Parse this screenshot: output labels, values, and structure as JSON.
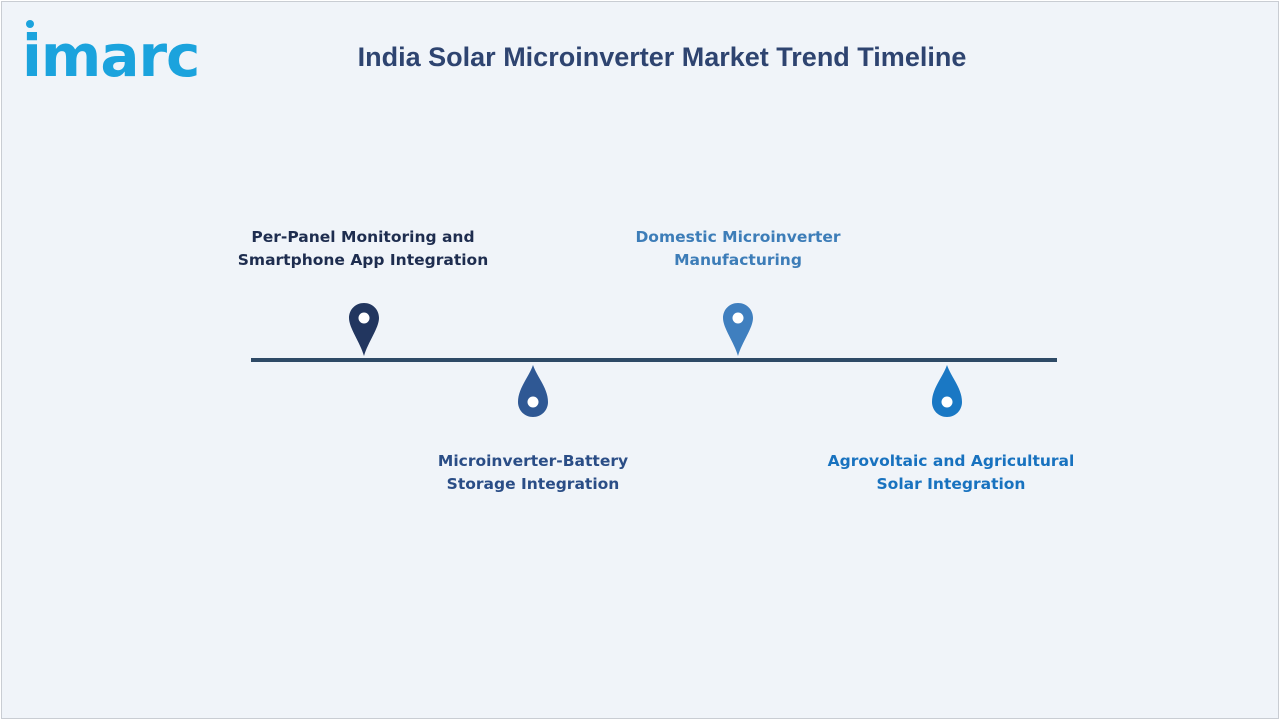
{
  "brand": {
    "logo_text": "imarc",
    "logo_color": "#1ba3dd"
  },
  "title": "India Solar Microinverter Market Trend Timeline",
  "colors": {
    "background": "#f0f4f9",
    "timeline_line": "#2e4a66",
    "title": "#2e4470"
  },
  "milestones": [
    {
      "line1": "Per-Panel Monitoring and",
      "line2": "Smartphone App Integration",
      "position": "above",
      "marker_shape": "map-pin",
      "color": "#22365f",
      "text_color": "#1e2d4f"
    },
    {
      "line1": "Microinverter-Battery",
      "line2": "Storage Integration",
      "position": "below",
      "marker_shape": "drop",
      "color": "#2f5894",
      "text_color": "#2a4d86"
    },
    {
      "line1": "Domestic Microinverter",
      "line2": "Manufacturing",
      "position": "above",
      "marker_shape": "map-pin",
      "color": "#3f7fbf",
      "text_color": "#3d7db8"
    },
    {
      "line1": "Agrovoltaic and Agricultural",
      "line2": "Solar Integration",
      "position": "below",
      "marker_shape": "drop",
      "color": "#1a78c4",
      "text_color": "#1872bf"
    }
  ]
}
